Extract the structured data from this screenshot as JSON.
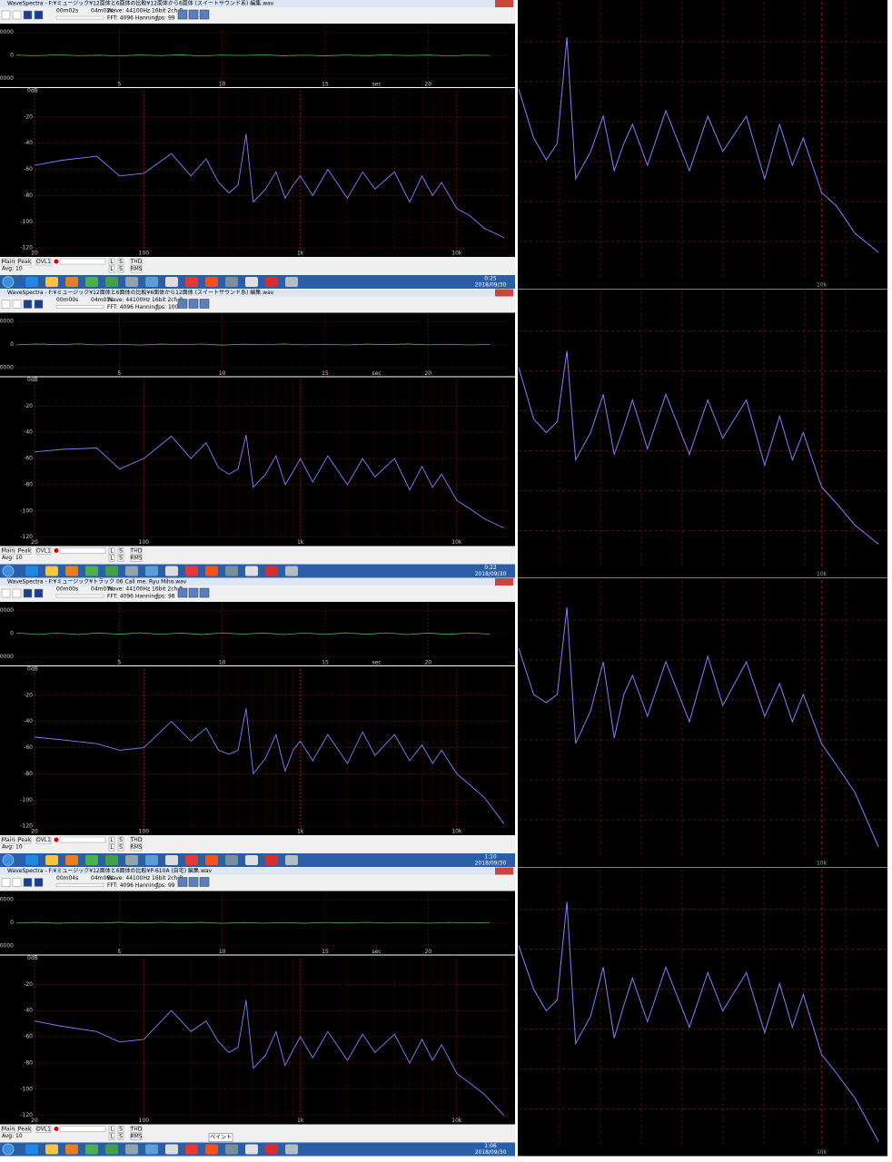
{
  "panels": [
    {
      "title": "WaveSpectra - F:¥ミュージック¥12面体と6面体の比較¥12面体から6面体 (スイートサウンド系) 編集.wav",
      "time_start": "00m02s",
      "time_end": "04m02s",
      "format": "Wave: 44100Hz 16bit 2ch B",
      "fft": "FFT: 4096 Hanning",
      "fps": "fps: 99",
      "clock": "0:25",
      "date": "2018/09/30",
      "wave": [
        120,
        -200,
        300,
        -150,
        80,
        -250,
        180,
        -100,
        220,
        -300,
        150,
        -60,
        260,
        -180,
        90,
        -220,
        140,
        -120,
        200,
        -90,
        170,
        -240,
        110,
        -50
      ],
      "spectrum": [
        -57,
        -53,
        -50,
        -65,
        -63,
        -48,
        -65,
        -52,
        -70,
        -78,
        -72,
        -33,
        -85,
        -75,
        -62,
        -82,
        -72,
        -65,
        -80,
        -60,
        -82,
        -62,
        -75,
        -62,
        -85,
        -65,
        -80,
        -70,
        -90,
        -95,
        -105,
        -112
      ]
    },
    {
      "title": "WaveSpectra - F:¥ミュージック¥12面体と6面体の比較¥6面体から12面体 (スイートサウンド系) 編集.wav",
      "time_start": "00m00s",
      "time_end": "04m07s",
      "format": "Wave: 44100Hz 16bit 2ch B",
      "fft": "FFT: 4096 Hanning",
      "fps": "fps: 100",
      "clock": "0:22",
      "date": "2018/09/30",
      "wave": [
        -150,
        220,
        -80,
        260,
        -190,
        110,
        -240,
        170,
        -60,
        210,
        -280,
        130,
        -100,
        250,
        -160,
        90,
        -210,
        180,
        -70,
        230,
        -140,
        100,
        -200,
        60
      ],
      "spectrum": [
        -55,
        -53,
        -52,
        -68,
        -60,
        -43,
        -60,
        -48,
        -67,
        -72,
        -68,
        -42,
        -82,
        -72,
        -58,
        -80,
        -70,
        -60,
        -78,
        -58,
        -80,
        -60,
        -74,
        -60,
        -84,
        -66,
        -82,
        -72,
        -92,
        -98,
        -106,
        -113
      ]
    },
    {
      "title": "WaveSpectra - F:¥ミュージック¥トラック 06 Call me. Ryu Miho.wav",
      "time_start": "00m00s",
      "time_end": "04m07s",
      "format": "Wave: 44100Hz 16bit 2ch B",
      "fft": "FFT: 4096 Hanning",
      "fps": "fps: 98",
      "clock": "1:10",
      "date": "2018/09/30",
      "wave": [
        300,
        -350,
        250,
        -400,
        320,
        -280,
        380,
        -300,
        270,
        -420,
        350,
        -260,
        310,
        -380,
        290,
        -330,
        360,
        -270,
        340,
        -390,
        280,
        -310,
        330,
        -250
      ],
      "spectrum": [
        -52,
        -54,
        -57,
        -62,
        -60,
        -40,
        -55,
        -45,
        -62,
        -65,
        -62,
        -30,
        -80,
        -68,
        -50,
        -78,
        -62,
        -55,
        -70,
        -50,
        -72,
        -48,
        -66,
        -50,
        -70,
        -58,
        -72,
        -62,
        -80,
        -88,
        -98,
        -118
      ]
    },
    {
      "title": "WaveSpectra - F:¥ミュージック¥12面体と6面体の比較¥P-610A (自宅) 編集.wav",
      "time_start": "00m04s",
      "time_end": "04m06s",
      "format": "Wave: 44100Hz 16bit 2ch B",
      "fft": "FFT: 4096 Hanning",
      "fps": "fps: 99",
      "clock": "1:06",
      "date": "2018/09/30",
      "tooltip": "ペイント",
      "wave": [
        -100,
        180,
        -220,
        90,
        -160,
        240,
        -120,
        200,
        -80,
        170,
        -250,
        130,
        -190,
        110,
        -230,
        150,
        -70,
        210,
        -140,
        100,
        -200,
        160,
        -90,
        120
      ],
      "spectrum": [
        -48,
        -52,
        -56,
        -64,
        -62,
        -40,
        -56,
        -48,
        -64,
        -72,
        -68,
        -32,
        -84,
        -74,
        -56,
        -82,
        -70,
        -60,
        -76,
        -56,
        -78,
        -58,
        -72,
        -58,
        -80,
        -62,
        -78,
        -66,
        -88,
        -95,
        -104,
        -120
      ]
    }
  ],
  "wave_times": [
    0,
    1,
    2,
    3,
    4,
    5,
    6,
    7,
    8,
    9,
    10,
    11,
    12,
    13,
    14,
    15,
    16,
    17,
    18,
    19,
    20,
    21,
    22,
    23
  ],
  "wave_xlim": [
    0,
    24
  ],
  "wave_xticks": [
    5,
    10,
    15,
    20
  ],
  "wave_xlabel": "sec",
  "wave_ylim": [
    -13000,
    13000
  ],
  "wave_yticks": [
    10000,
    0,
    -10000
  ],
  "spectrum_freqs": [
    20,
    30,
    50,
    70,
    100,
    150,
    200,
    250,
    300,
    350,
    400,
    450,
    500,
    600,
    700,
    800,
    900,
    1000,
    1200,
    1500,
    2000,
    2500,
    3000,
    4000,
    5000,
    6000,
    7000,
    8000,
    10000,
    12000,
    15000,
    20000
  ],
  "spectrum_xlim": [
    20,
    22050
  ],
  "spectrum_xticks": [
    20,
    100,
    {
      "value": 1000,
      "label": "1k"
    },
    {
      "value": 10000,
      "label": "10k"
    }
  ],
  "spectrum_ylim": [
    -122,
    0
  ],
  "spectrum_yticks": [
    -20,
    -40,
    -60,
    -80,
    -100,
    -120
  ],
  "spectrum_ylabel": "0dB",
  "zoom_xlim": [
    250,
    22050
  ],
  "zoom_ylim": [
    -122,
    -20
  ],
  "zoom_xticks": [
    {
      "value": 10000,
      "label": "10k"
    }
  ],
  "controls": {
    "main": "Main",
    "peak": "Peak",
    "ovl": "OVL1",
    "l": "L",
    "s": "S",
    "thd": "THD",
    "avg": "Avg: 10",
    "rms": "RMS"
  }
}
